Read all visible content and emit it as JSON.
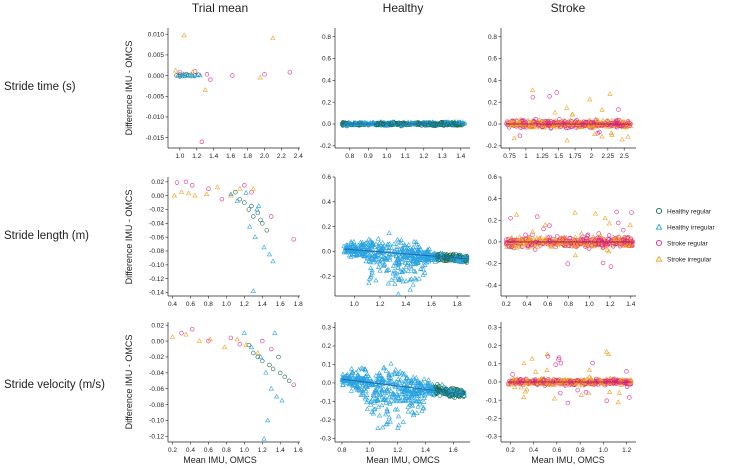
{
  "columns": [
    "Trial mean",
    "Healthy",
    "Stroke"
  ],
  "rows": [
    "Stride time (s)",
    "Stride length (m)",
    "Stride velocity (m/s)"
  ],
  "y_axis_label": "Difference IMU - OMCS",
  "x_axis_label": "Mean IMU, OMCS",
  "legend": [
    {
      "label": "Healthy regular",
      "color": "#1b6b4a",
      "marker": "circle"
    },
    {
      "label": "Healthy irregular",
      "color": "#2aa3e0",
      "marker": "triangle"
    },
    {
      "label": "Stroke regular",
      "color": "#e0288c",
      "marker": "circle"
    },
    {
      "label": "Stroke irregular",
      "color": "#f2a024",
      "marker": "triangle"
    }
  ],
  "colors": {
    "healthy_regular": "#1b6b4a",
    "healthy_irregular": "#2aa3e0",
    "stroke_regular": "#e0288c",
    "stroke_irregular": "#f2a024"
  },
  "chart_data": [
    {
      "type": "scatter",
      "row": 0,
      "col": 0,
      "xlim": [
        0.86,
        2.42
      ],
      "ylim": [
        -0.0175,
        0.0115
      ],
      "xticks": [
        1.0,
        1.2,
        1.4,
        1.6,
        1.8,
        2.0,
        2.2,
        2.4
      ],
      "xtick_labels": [
        "1.0",
        "1.2",
        "1.4",
        "1.6",
        "1.8",
        "2.0",
        "2.2",
        "2.4"
      ],
      "yticks": [
        0.01,
        0.005,
        0.0,
        -0.005,
        -0.01,
        -0.015
      ],
      "ytick_labels": [
        "0.010",
        "0.005",
        "0.000",
        "-0.005",
        "-0.010",
        "-0.015"
      ],
      "mode": "trial",
      "series": [
        {
          "group": "healthy_regular",
          "points": [
            [
              0.96,
              0.0
            ],
            [
              1.0,
              0.0002
            ],
            [
              1.03,
              -0.0001
            ],
            [
              1.06,
              0.0
            ],
            [
              1.1,
              0.0001
            ],
            [
              1.14,
              -0.0001
            ],
            [
              1.18,
              0.0
            ],
            [
              1.22,
              0.0002
            ],
            [
              1.0,
              -0.0002
            ],
            [
              1.08,
              0.0003
            ]
          ]
        },
        {
          "group": "healthy_irregular",
          "points": [
            [
              0.98,
              0.0001
            ],
            [
              1.02,
              -0.0002
            ],
            [
              1.05,
              0.0002
            ],
            [
              1.09,
              -0.0001
            ],
            [
              1.12,
              0.0001
            ],
            [
              1.16,
              -0.0002
            ],
            [
              1.2,
              0.0001
            ],
            [
              1.24,
              0.0
            ],
            [
              1.04,
              0.0003
            ],
            [
              1.14,
              0.0002
            ]
          ]
        },
        {
          "group": "stroke_regular",
          "points": [
            [
              1.0,
              0.0008
            ],
            [
              1.18,
              0.001
            ],
            [
              1.26,
              -0.016
            ],
            [
              1.32,
              0.0003
            ],
            [
              1.36,
              -0.001
            ],
            [
              1.62,
              0.0
            ],
            [
              2.0,
              0.0003
            ],
            [
              2.3,
              0.0008
            ]
          ]
        },
        {
          "group": "stroke_irregular",
          "points": [
            [
              0.95,
              0.0012
            ],
            [
              1.05,
              0.0097
            ],
            [
              1.15,
              0.0008
            ],
            [
              1.3,
              -0.0035
            ],
            [
              1.95,
              -0.0005
            ],
            [
              2.1,
              0.009
            ]
          ]
        }
      ]
    },
    {
      "type": "scatter",
      "row": 0,
      "col": 1,
      "xlim": [
        0.72,
        1.45
      ],
      "ylim": [
        -0.22,
        0.88
      ],
      "xticks": [
        0.8,
        0.9,
        1.0,
        1.1,
        1.2,
        1.3,
        1.4
      ],
      "xtick_labels": [
        "0.8",
        "0.9",
        "1.0",
        "1.1",
        "1.2",
        "1.3",
        "1.4"
      ],
      "yticks": [
        0.8,
        0.6,
        0.4,
        0.2,
        0.0,
        -0.2
      ],
      "ytick_labels": [
        "0.8",
        "0.6",
        "0.4",
        "0.2",
        "0.0",
        "-0.2"
      ],
      "mode": "band",
      "band": {
        "xrange": [
          0.76,
          1.42
        ],
        "center": 0.0,
        "spread": 0.035
      }
    },
    {
      "type": "scatter",
      "row": 0,
      "col": 2,
      "xlim": [
        0.62,
        2.68
      ],
      "ylim": [
        -0.22,
        0.88
      ],
      "xticks": [
        0.75,
        1.0,
        1.25,
        1.5,
        1.75,
        2.0,
        2.25,
        2.5
      ],
      "xtick_labels": [
        "0.75",
        "1",
        "1.25",
        "1.5",
        "1.75",
        "2",
        "2.25",
        "2.5"
      ],
      "yticks": [
        0.8,
        0.6,
        0.4,
        0.2,
        0.0,
        -0.2
      ],
      "ytick_labels": [
        "0.8",
        "0.6",
        "0.4",
        "0.2",
        "0.0",
        "-0.2"
      ],
      "mode": "band",
      "band": {
        "xrange": [
          0.7,
          2.6
        ],
        "center": 0.0,
        "spread": 0.05
      }
    },
    {
      "type": "scatter",
      "row": 1,
      "col": 0,
      "xlim": [
        0.35,
        1.82
      ],
      "ylim": [
        -0.145,
        0.027
      ],
      "xticks": [
        0.4,
        0.6,
        0.8,
        1.0,
        1.2,
        1.4,
        1.6,
        1.8
      ],
      "xtick_labels": [
        "0.4",
        "0.6",
        "0.8",
        "1.0",
        "1.2",
        "1.4",
        "1.6",
        "1.8"
      ],
      "yticks": [
        0.02,
        0.0,
        -0.02,
        -0.04,
        -0.06,
        -0.08,
        -0.1,
        -0.12,
        -0.14
      ],
      "ytick_labels": [
        "0.02",
        "0.00",
        "-0.02",
        "-0.04",
        "-0.06",
        "-0.08",
        "-0.10",
        "-0.12",
        "-0.14"
      ],
      "mode": "trial",
      "series": [
        {
          "group": "healthy_regular",
          "points": [
            [
              1.1,
              0.005
            ],
            [
              1.15,
              -0.005
            ],
            [
              1.2,
              -0.01
            ],
            [
              1.25,
              -0.02
            ],
            [
              1.3,
              -0.03
            ],
            [
              1.35,
              -0.025
            ],
            [
              1.4,
              -0.04
            ],
            [
              1.45,
              -0.05
            ],
            [
              1.28,
              -0.015
            ],
            [
              1.38,
              -0.035
            ]
          ]
        },
        {
          "group": "healthy_irregular",
          "points": [
            [
              1.05,
              0.002
            ],
            [
              1.12,
              -0.008
            ],
            [
              1.22,
              0.004
            ],
            [
              1.26,
              -0.045
            ],
            [
              1.3,
              -0.138
            ],
            [
              1.32,
              -0.06
            ],
            [
              1.36,
              -0.015
            ],
            [
              1.42,
              -0.075
            ],
            [
              1.48,
              -0.085
            ],
            [
              1.52,
              -0.095
            ],
            [
              1.34,
              -0.02
            ]
          ]
        },
        {
          "group": "stroke_regular",
          "points": [
            [
              0.45,
              0.019
            ],
            [
              0.55,
              0.02
            ],
            [
              0.62,
              0.015
            ],
            [
              0.8,
              0.01
            ],
            [
              0.95,
              -0.005
            ],
            [
              1.2,
              0.015
            ],
            [
              1.28,
              0.005
            ],
            [
              1.5,
              -0.03
            ],
            [
              1.75,
              -0.063
            ]
          ]
        },
        {
          "group": "stroke_irregular",
          "points": [
            [
              0.42,
              0.0
            ],
            [
              0.5,
              0.005
            ],
            [
              0.58,
              0.003
            ],
            [
              0.65,
              0.0
            ],
            [
              0.78,
              0.002
            ],
            [
              0.9,
              0.012
            ],
            [
              1.05,
              0.0
            ],
            [
              1.15,
              0.01
            ],
            [
              1.3,
              0.01
            ]
          ]
        }
      ]
    },
    {
      "type": "scatter",
      "row": 1,
      "col": 1,
      "xlim": [
        0.85,
        1.9
      ],
      "ylim": [
        -0.36,
        0.6
      ],
      "xticks": [
        1.0,
        1.2,
        1.4,
        1.6,
        1.8
      ],
      "xtick_labels": [
        "1.0",
        "1.2",
        "1.4",
        "1.6",
        "1.8"
      ],
      "yticks": [
        0.6,
        0.4,
        0.2,
        0.0,
        -0.2
      ],
      "ytick_labels": [
        "0.6",
        "0.4",
        "0.2",
        "0.0",
        "-0.2"
      ],
      "mode": "fan",
      "fan": {
        "xrange": [
          0.92,
          1.88
        ],
        "center_start": 0.02,
        "center_end": -0.06,
        "spread": 0.06
      }
    },
    {
      "type": "scatter",
      "row": 1,
      "col": 2,
      "xlim": [
        0.15,
        1.45
      ],
      "ylim": [
        -0.5,
        0.6
      ],
      "xticks": [
        0.2,
        0.4,
        0.6,
        0.8,
        1.0,
        1.2,
        1.4
      ],
      "xtick_labels": [
        "0.2",
        "0.4",
        "0.6",
        "0.8",
        "1.0",
        "1.2",
        "1.4"
      ],
      "yticks": [
        0.6,
        0.4,
        0.2,
        0.0,
        -0.2,
        -0.4
      ],
      "ytick_labels": [
        "0.6",
        "0.4",
        "0.2",
        "0.0",
        "-0.2",
        "-0.4"
      ],
      "mode": "band",
      "band": {
        "xrange": [
          0.2,
          1.42
        ],
        "center": 0.0,
        "spread": 0.07
      }
    },
    {
      "type": "scatter",
      "row": 2,
      "col": 0,
      "xlim": [
        0.15,
        1.62
      ],
      "ylim": [
        -0.127,
        0.024
      ],
      "xticks": [
        0.2,
        0.4,
        0.6,
        0.8,
        1.0,
        1.2,
        1.4,
        1.6
      ],
      "xtick_labels": [
        "0.2",
        "0.4",
        "0.6",
        "0.8",
        "1.0",
        "1.2",
        "1.4",
        "1.6"
      ],
      "yticks": [
        0.02,
        0.0,
        -0.02,
        -0.04,
        -0.06,
        -0.08,
        -0.1,
        -0.12
      ],
      "ytick_labels": [
        "0.02",
        "0.00",
        "-0.02",
        "-0.04",
        "-0.06",
        "-0.08",
        "-0.10",
        "-0.12"
      ],
      "mode": "trial",
      "series": [
        {
          "group": "healthy_regular",
          "points": [
            [
              1.05,
              -0.005
            ],
            [
              1.1,
              -0.015
            ],
            [
              1.15,
              -0.02
            ],
            [
              1.2,
              -0.025
            ],
            [
              1.28,
              -0.03
            ],
            [
              1.32,
              -0.035
            ],
            [
              1.4,
              -0.04
            ],
            [
              1.45,
              -0.045
            ],
            [
              1.5,
              -0.05
            ],
            [
              1.38,
              -0.02
            ]
          ]
        },
        {
          "group": "healthy_irregular",
          "points": [
            [
              1.0,
              0.01
            ],
            [
              1.08,
              -0.008
            ],
            [
              1.18,
              -0.02
            ],
            [
              1.22,
              -0.123
            ],
            [
              1.26,
              -0.1
            ],
            [
              1.3,
              -0.06
            ],
            [
              1.34,
              0.01
            ],
            [
              1.36,
              -0.07
            ],
            [
              1.42,
              -0.075
            ],
            [
              1.24,
              -0.04
            ]
          ]
        },
        {
          "group": "stroke_regular",
          "points": [
            [
              0.3,
              0.01
            ],
            [
              0.42,
              0.015
            ],
            [
              0.6,
              0.0
            ],
            [
              0.85,
              0.004
            ],
            [
              0.95,
              -0.004
            ],
            [
              1.2,
              0.0
            ],
            [
              1.3,
              -0.01
            ],
            [
              1.55,
              -0.055
            ]
          ]
        },
        {
          "group": "stroke_irregular",
          "points": [
            [
              0.2,
              0.005
            ],
            [
              0.35,
              0.008
            ],
            [
              0.5,
              0.0
            ],
            [
              0.62,
              0.002
            ],
            [
              0.78,
              -0.008
            ],
            [
              0.92,
              0.002
            ],
            [
              1.02,
              -0.005
            ],
            [
              1.15,
              -0.015
            ]
          ]
        }
      ]
    },
    {
      "type": "scatter",
      "row": 2,
      "col": 1,
      "xlim": [
        0.75,
        1.72
      ],
      "ylim": [
        -0.32,
        0.33
      ],
      "xticks": [
        0.8,
        1.0,
        1.2,
        1.4,
        1.6
      ],
      "xtick_labels": [
        "0.8",
        "1.0",
        "1.2",
        "1.4",
        "1.6"
      ],
      "yticks": [
        0.3,
        0.2,
        0.1,
        0.0,
        -0.1,
        -0.2,
        -0.3
      ],
      "ytick_labels": [
        "0.3",
        "0.2",
        "0.1",
        "0.0",
        "-0.1",
        "-0.2",
        "-0.3"
      ],
      "mode": "fan",
      "fan": {
        "xrange": [
          0.8,
          1.68
        ],
        "center_start": 0.02,
        "center_end": -0.06,
        "spread": 0.05
      }
    },
    {
      "type": "scatter",
      "row": 2,
      "col": 2,
      "xlim": [
        0.12,
        1.28
      ],
      "ylim": [
        -0.33,
        0.33
      ],
      "xticks": [
        0.2,
        0.4,
        0.6,
        0.8,
        1.0,
        1.2
      ],
      "xtick_labels": [
        "0.2",
        "0.4",
        "0.6",
        "0.8",
        "1.0",
        "1.2"
      ],
      "yticks": [
        0.3,
        0.2,
        0.1,
        0.0,
        -0.1,
        -0.2,
        -0.3
      ],
      "ytick_labels": [
        "0.3",
        "0.2",
        "0.1",
        "0.0",
        "-0.1",
        "-0.2",
        "-0.3"
      ],
      "mode": "band",
      "band": {
        "xrange": [
          0.18,
          1.24
        ],
        "center": 0.0,
        "spread": 0.04
      }
    }
  ]
}
